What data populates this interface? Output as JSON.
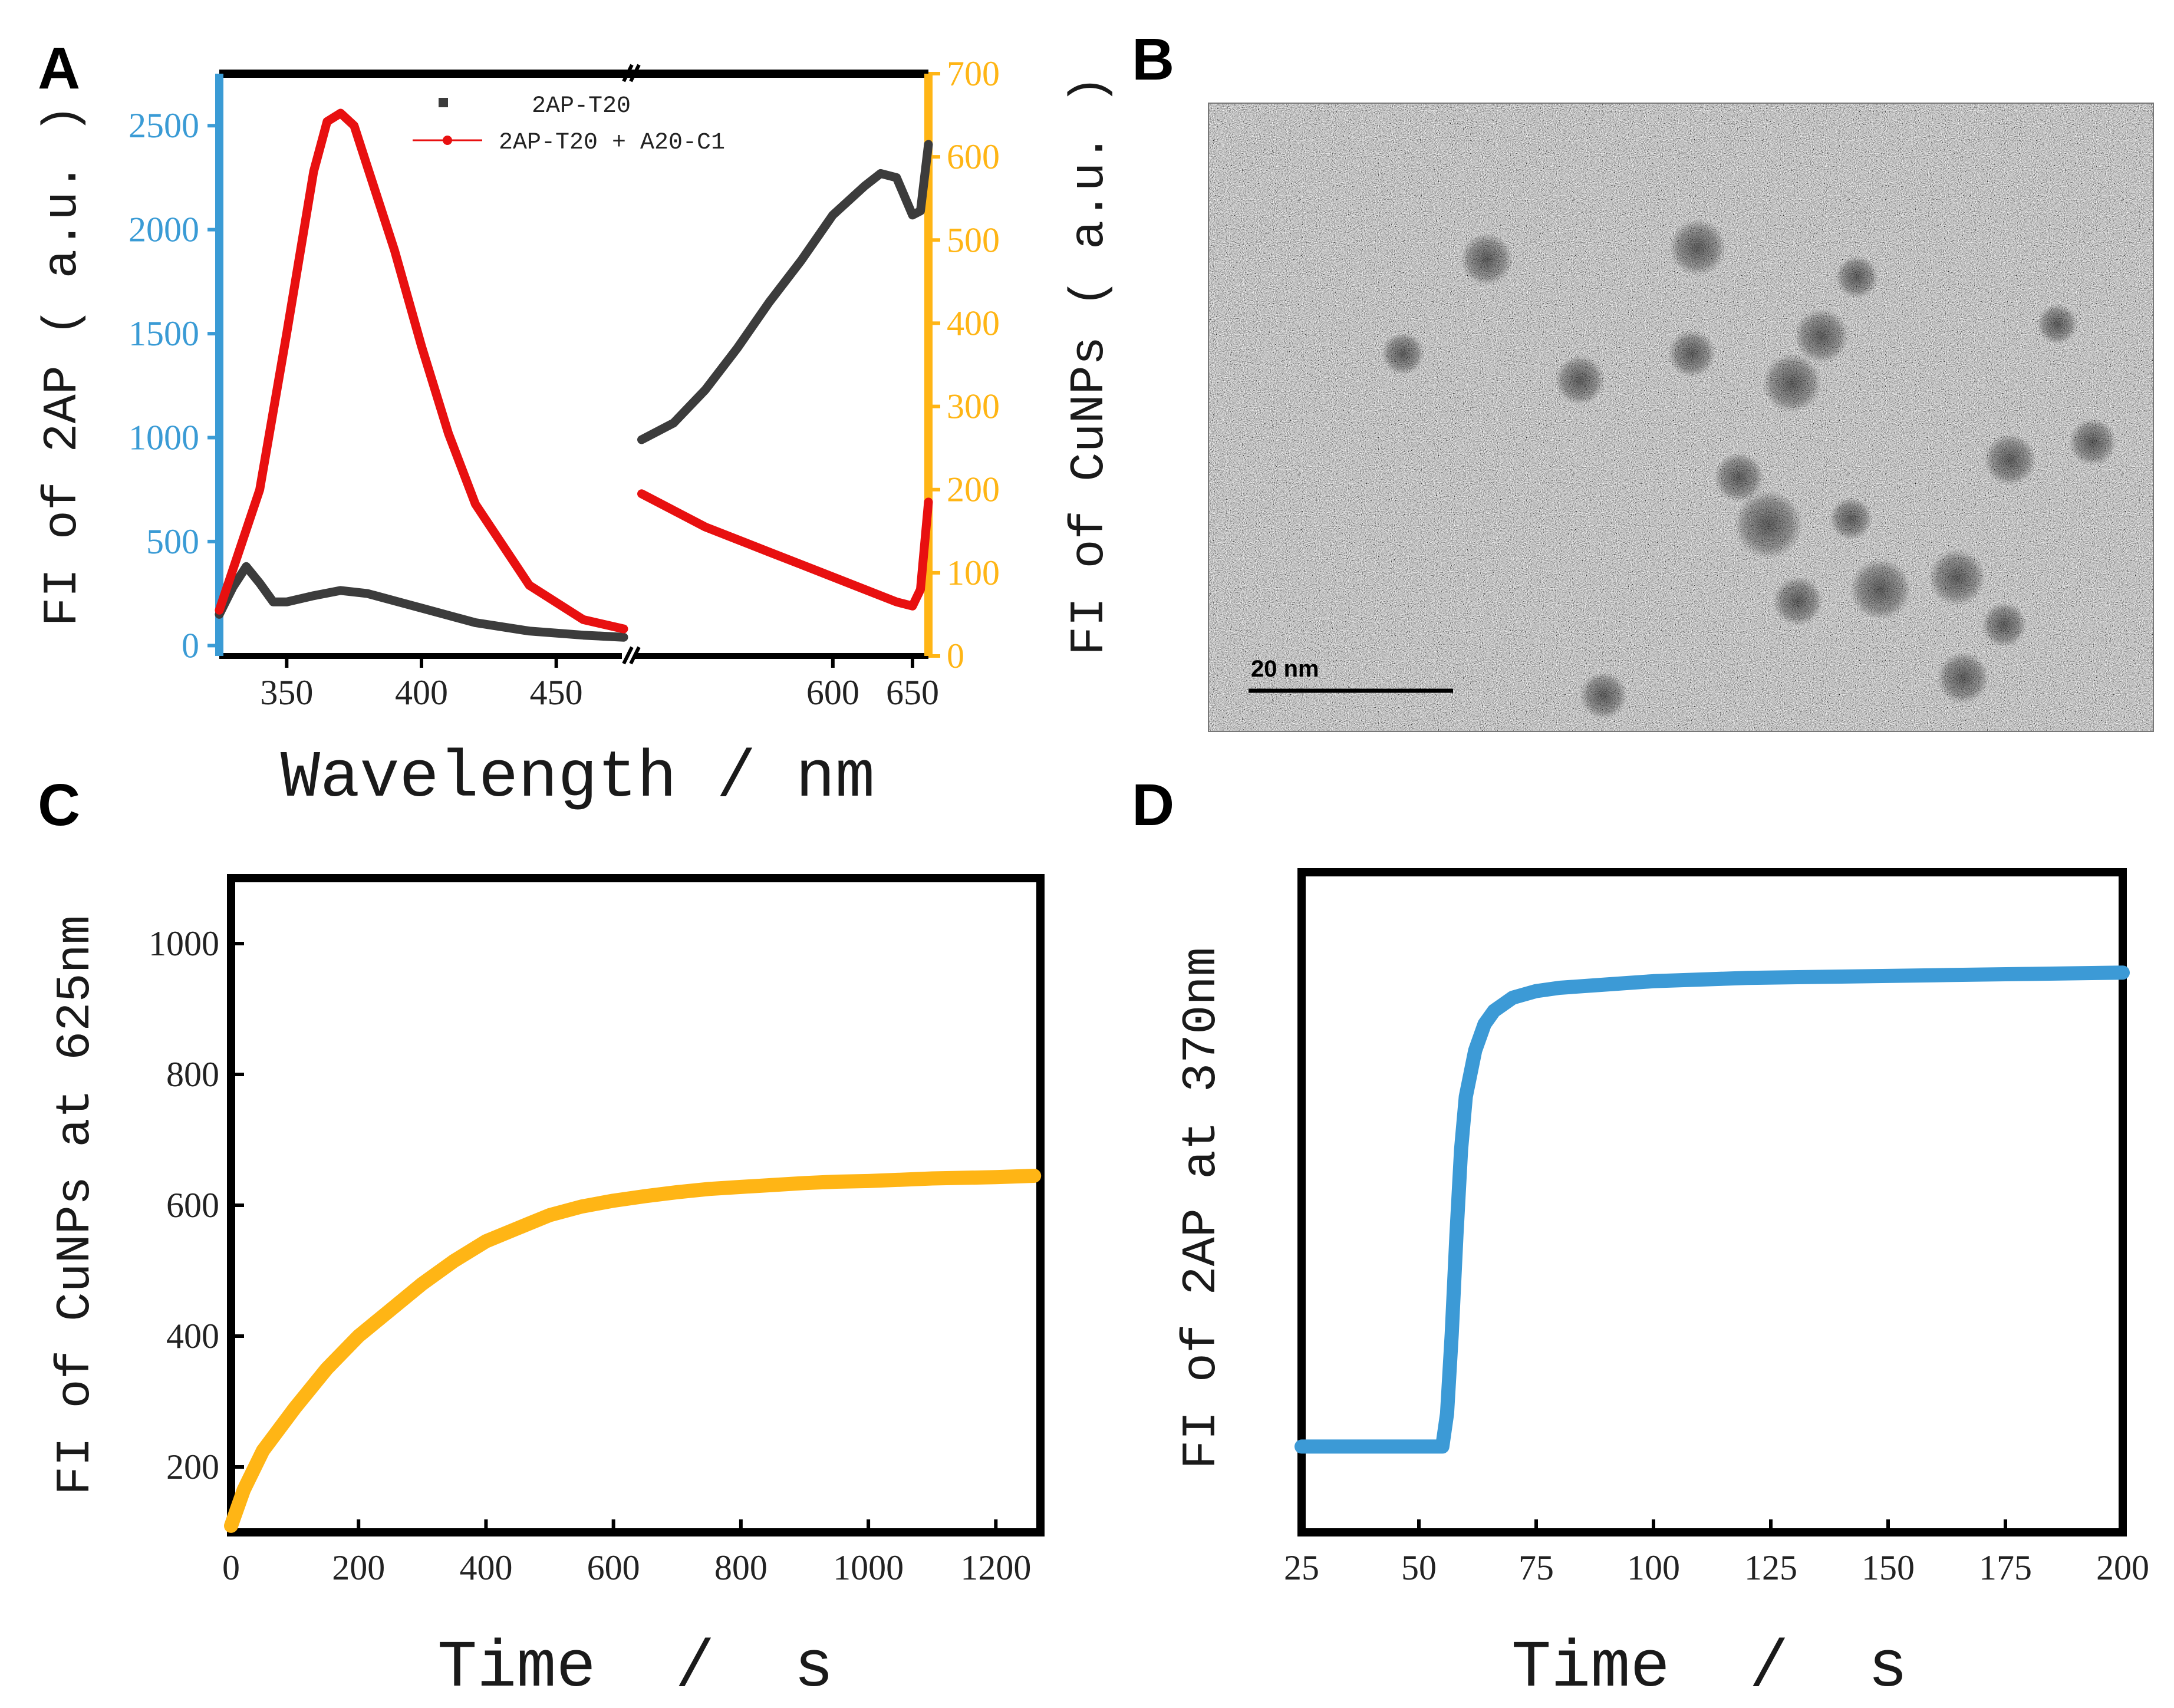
{
  "chart_data": [
    {
      "id": "A",
      "panel_label": "A",
      "type": "line",
      "xlabel": "Wavelength / nm",
      "ylabel_left": "FI of 2AP ( a.u. )",
      "ylabel_right": "FI of CuNPs ( a.u. )",
      "x_segments": [
        [
          325,
          475
        ],
        [
          475,
          660
        ]
      ],
      "left_ylim": [
        -50,
        2750
      ],
      "right_ylim": [
        0,
        700
      ],
      "left_yticks": [
        "0",
        "500",
        "1000",
        "1500",
        "2000",
        "2500"
      ],
      "right_yticks": [
        "0",
        "100",
        "200",
        "300",
        "400",
        "500",
        "600",
        "700"
      ],
      "xticks_left": [
        "350",
        "400",
        "450"
      ],
      "xticks_right": [
        "600",
        "650"
      ],
      "colors": {
        "left_axis": "#3a9bd5",
        "right_axis": "#ffb515"
      },
      "legend": [
        {
          "label": "2AP-T20",
          "color": "#3c3c3c"
        },
        {
          "label": "2AP-T20 + A20-C1",
          "color": "#e81010"
        }
      ],
      "series": [
        {
          "name": "2AP-T20 (2AP band)",
          "color": "#3c3c3c",
          "axis": "left",
          "x": [
            325,
            330,
            335,
            340,
            345,
            350,
            360,
            370,
            380,
            400,
            420,
            440,
            460,
            475
          ],
          "y": [
            150,
            280,
            380,
            300,
            210,
            210,
            240,
            265,
            250,
            180,
            110,
            70,
            50,
            40
          ]
        },
        {
          "name": "2AP-T20 + A20-C1 (2AP band)",
          "color": "#e81010",
          "axis": "left",
          "x": [
            325,
            340,
            350,
            360,
            365,
            370,
            375,
            380,
            390,
            400,
            410,
            420,
            440,
            460,
            475
          ],
          "y": [
            170,
            750,
            1500,
            2280,
            2520,
            2560,
            2500,
            2300,
            1900,
            1440,
            1020,
            680,
            290,
            125,
            80
          ]
        },
        {
          "name": "2AP-T20 (CuNPs band)",
          "color": "#3c3c3c",
          "axis": "right",
          "x": [
            480,
            500,
            520,
            540,
            560,
            580,
            600,
            620,
            630,
            640,
            650,
            655,
            660
          ],
          "y": [
            260,
            280,
            320,
            370,
            425,
            475,
            530,
            565,
            580,
            575,
            530,
            535,
            615
          ]
        },
        {
          "name": "2AP-T20 + A20-C1 (CuNPs band)",
          "color": "#e81010",
          "axis": "right",
          "x": [
            480,
            500,
            520,
            540,
            560,
            580,
            600,
            620,
            640,
            650,
            655,
            660
          ],
          "y": [
            195,
            175,
            155,
            140,
            125,
            110,
            95,
            80,
            65,
            60,
            80,
            185
          ]
        }
      ]
    },
    {
      "id": "C",
      "panel_label": "C",
      "type": "line",
      "xlabel": "Time  /  s",
      "ylabel": "FI of CuNPs at 625nm",
      "xlim": [
        0,
        1270
      ],
      "ylim": [
        100,
        1100
      ],
      "xticks": [
        "0",
        "200",
        "400",
        "600",
        "800",
        "1000",
        "1200"
      ],
      "yticks": [
        "200",
        "400",
        "600",
        "800",
        "1000"
      ],
      "series": [
        {
          "name": "CuNPs 625nm",
          "color": "#ffb515",
          "x": [
            0,
            20,
            50,
            100,
            150,
            200,
            250,
            300,
            350,
            400,
            450,
            500,
            550,
            600,
            650,
            700,
            750,
            800,
            850,
            900,
            950,
            1000,
            1050,
            1100,
            1150,
            1200,
            1260
          ],
          "y": [
            110,
            165,
            225,
            290,
            350,
            400,
            440,
            480,
            515,
            545,
            565,
            585,
            598,
            607,
            614,
            620,
            625,
            628,
            631,
            634,
            636,
            637,
            639,
            641,
            642,
            643,
            645
          ]
        }
      ]
    },
    {
      "id": "D",
      "panel_label": "D",
      "type": "line",
      "xlabel": "Time  /  s",
      "ylabel": "FI of 2AP at 370nm",
      "xlim": [
        25,
        200
      ],
      "ylim": [
        0,
        100
      ],
      "xticks": [
        "25",
        "50",
        "75",
        "100",
        "125",
        "150",
        "175",
        "200"
      ],
      "series": [
        {
          "name": "2AP 370nm",
          "color": "#3c9ad6",
          "x": [
            25,
            40,
            50,
            55,
            56,
            57,
            58,
            59,
            60,
            62,
            64,
            66,
            70,
            75,
            80,
            90,
            100,
            120,
            140,
            160,
            180,
            200
          ],
          "y": [
            13,
            13,
            13,
            13,
            18,
            30,
            45,
            58,
            66,
            73,
            77,
            79,
            81,
            82,
            82.5,
            83,
            83.5,
            84,
            84.2,
            84.4,
            84.6,
            84.8
          ]
        }
      ]
    }
  ],
  "tem_image": {
    "panel_label": "B",
    "scale_bar_label": "20 nm"
  }
}
